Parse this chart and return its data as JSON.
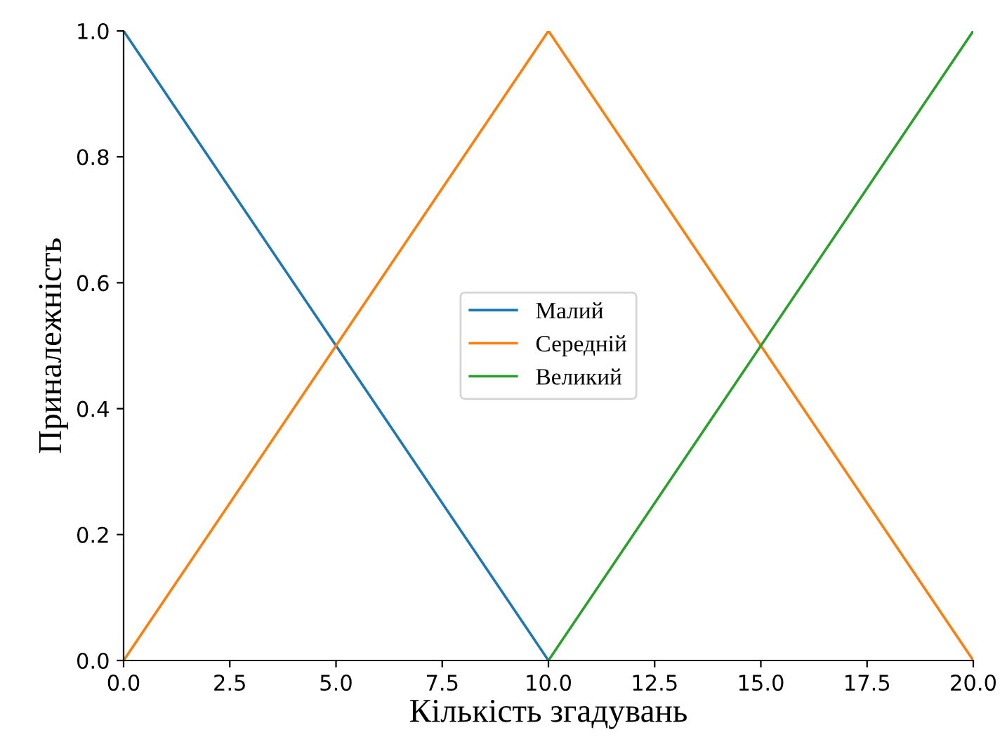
{
  "chart_data": {
    "type": "line",
    "xlabel": "Кількість згадувань",
    "ylabel": "Приналежність",
    "series": [
      {
        "name": "Малий",
        "color": "#1f77b4",
        "x": [
          0,
          10
        ],
        "values": [
          1,
          0
        ]
      },
      {
        "name": "Середній",
        "color": "#ff7f0e",
        "x": [
          0,
          10,
          20
        ],
        "values": [
          0,
          1,
          0
        ]
      },
      {
        "name": "Великий",
        "color": "#2ca02c",
        "x": [
          10,
          20
        ],
        "values": [
          0,
          1
        ]
      }
    ],
    "xlim": [
      0,
      20
    ],
    "xticks": [
      {
        "value": 0,
        "label": "0.0"
      },
      2.5,
      {
        "value": 5,
        "label": "5.0"
      },
      7.5,
      {
        "value": 10,
        "label": "10.0"
      },
      12.5,
      {
        "value": 15,
        "label": "15.0"
      },
      17.5,
      {
        "value": 20,
        "label": "20.0"
      }
    ],
    "ylim": [
      0,
      1
    ],
    "yticks": [
      {
        "value": 0,
        "label": "0.0"
      },
      0.2,
      0.4,
      0.6,
      0.8,
      {
        "value": 1,
        "label": "1.0"
      }
    ],
    "grid": false,
    "legend": "center",
    "marker": "none",
    "line_style": "solid"
  }
}
